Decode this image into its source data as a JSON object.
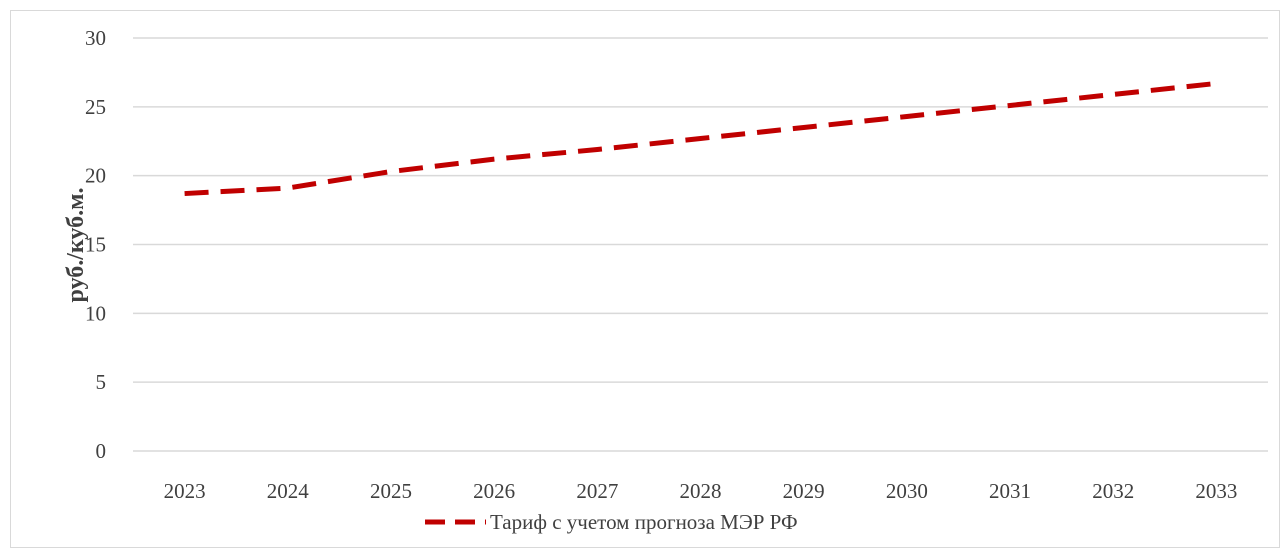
{
  "chart_data": {
    "type": "line",
    "title": "",
    "xlabel": "",
    "ylabel": "руб./куб.м.",
    "categories": [
      "2023",
      "2024",
      "2025",
      "2026",
      "2027",
      "2028",
      "2029",
      "2030",
      "2031",
      "2032",
      "2033"
    ],
    "series": [
      {
        "name": "Тариф с учетом прогноза МЭР РФ",
        "values": [
          18.7,
          19.1,
          20.3,
          21.2,
          21.9,
          22.7,
          23.5,
          24.3,
          25.1,
          25.9,
          26.7
        ],
        "color": "#c00000",
        "dash": "dashed"
      }
    ],
    "ylim": [
      0,
      30
    ],
    "yticks": [
      0,
      5,
      10,
      15,
      20,
      25,
      30
    ],
    "grid": "horizontal",
    "legend_position": "bottom"
  }
}
